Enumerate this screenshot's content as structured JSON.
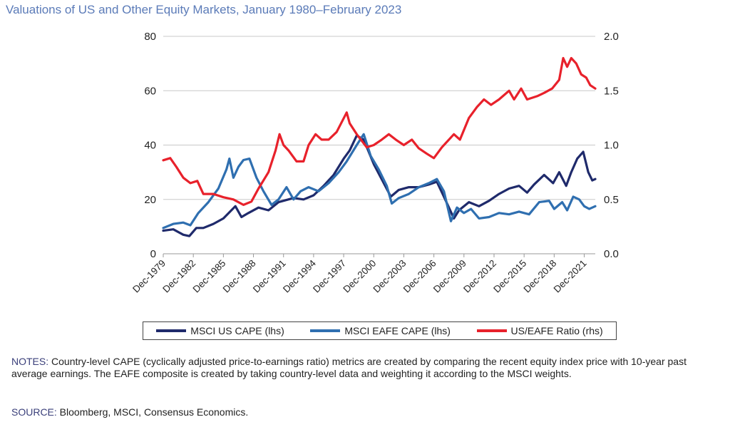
{
  "title": "Valuations of US and Other Equity Markets, January 1980–February 2023",
  "chart_data": {
    "type": "line",
    "title": "Valuations of US and Other Equity Markets, January 1980–February 2023",
    "xlabel": "",
    "ylabel_left": "",
    "ylabel_right": "",
    "x_range": [
      1980.0,
      2023.1
    ],
    "ylim_left": [
      0,
      80
    ],
    "ylim_right": [
      0.0,
      2.0
    ],
    "y_ticks_left": [
      "80",
      "60",
      "40",
      "20",
      "0"
    ],
    "y_ticks_right": [
      "2.0",
      "1.5",
      "1.0",
      "0.5",
      "0.0"
    ],
    "x_ticks": [
      {
        "label": "Dec-1979",
        "x": 1980.0
      },
      {
        "label": "Dec-1982",
        "x": 1983.0
      },
      {
        "label": "Dec-1985",
        "x": 1986.0
      },
      {
        "label": "Dec-1988",
        "x": 1989.0
      },
      {
        "label": "Dec-1991",
        "x": 1992.0
      },
      {
        "label": "Dec-1994",
        "x": 1995.0
      },
      {
        "label": "Dec-1997",
        "x": 1998.0
      },
      {
        "label": "Dec-2000",
        "x": 2001.0
      },
      {
        "label": "Dec-2003",
        "x": 2004.0
      },
      {
        "label": "Dec-2006",
        "x": 2007.0
      },
      {
        "label": "Dec-2009",
        "x": 2010.0
      },
      {
        "label": "Dec-2012",
        "x": 2013.0
      },
      {
        "label": "Dec-2015",
        "x": 2016.0
      },
      {
        "label": "Dec-2018",
        "x": 2019.0
      },
      {
        "label": "Dec-2021",
        "x": 2022.0
      }
    ],
    "grid": true,
    "series": [
      {
        "name": "MSCI US CAPE (lhs)",
        "axis": "left",
        "color": "#1f2a6b",
        "points": [
          [
            1980.0,
            8.5
          ],
          [
            1981.0,
            9.0
          ],
          [
            1982.0,
            7.0
          ],
          [
            1982.6,
            6.5
          ],
          [
            1983.3,
            9.5
          ],
          [
            1984.0,
            9.5
          ],
          [
            1985.0,
            11.0
          ],
          [
            1986.0,
            13.0
          ],
          [
            1987.2,
            17.5
          ],
          [
            1987.8,
            13.5
          ],
          [
            1988.5,
            15.0
          ],
          [
            1989.5,
            17.0
          ],
          [
            1990.5,
            16.0
          ],
          [
            1991.5,
            19.0
          ],
          [
            1993.0,
            20.5
          ],
          [
            1994.0,
            20.0
          ],
          [
            1995.0,
            21.5
          ],
          [
            1996.0,
            25.0
          ],
          [
            1997.0,
            29.0
          ],
          [
            1998.0,
            35.0
          ],
          [
            1998.6,
            38.0
          ],
          [
            1999.3,
            43.5
          ],
          [
            2000.0,
            42.0
          ],
          [
            2001.0,
            33.0
          ],
          [
            2002.0,
            26.0
          ],
          [
            2002.7,
            21.0
          ],
          [
            2003.5,
            23.5
          ],
          [
            2004.5,
            24.5
          ],
          [
            2005.5,
            24.5
          ],
          [
            2006.5,
            25.5
          ],
          [
            2007.3,
            26.5
          ],
          [
            2008.0,
            21.0
          ],
          [
            2009.0,
            13.0
          ],
          [
            2009.5,
            16.0
          ],
          [
            2010.5,
            19.0
          ],
          [
            2011.5,
            17.5
          ],
          [
            2012.5,
            19.5
          ],
          [
            2013.5,
            22.0
          ],
          [
            2014.5,
            24.0
          ],
          [
            2015.5,
            25.0
          ],
          [
            2016.3,
            22.5
          ],
          [
            2017.0,
            25.5
          ],
          [
            2018.0,
            29.0
          ],
          [
            2018.9,
            26.0
          ],
          [
            2019.5,
            30.0
          ],
          [
            2020.2,
            25.0
          ],
          [
            2020.7,
            30.0
          ],
          [
            2021.3,
            35.0
          ],
          [
            2021.9,
            37.5
          ],
          [
            2022.4,
            30.0
          ],
          [
            2022.8,
            27.0
          ],
          [
            2023.1,
            27.5
          ]
        ]
      },
      {
        "name": "MSCI EAFE CAPE (lhs)",
        "axis": "left",
        "color": "#2f6fb0",
        "points": [
          [
            1980.0,
            9.5
          ],
          [
            1981.0,
            11.0
          ],
          [
            1982.0,
            11.5
          ],
          [
            1982.7,
            10.5
          ],
          [
            1983.5,
            15.0
          ],
          [
            1984.5,
            19.0
          ],
          [
            1985.5,
            24.0
          ],
          [
            1986.3,
            31.0
          ],
          [
            1986.6,
            35.0
          ],
          [
            1987.0,
            28.0
          ],
          [
            1987.5,
            32.0
          ],
          [
            1988.0,
            34.5
          ],
          [
            1988.6,
            35.0
          ],
          [
            1989.3,
            28.0
          ],
          [
            1990.0,
            23.0
          ],
          [
            1990.8,
            18.0
          ],
          [
            1991.5,
            20.0
          ],
          [
            1992.3,
            24.5
          ],
          [
            1993.0,
            20.0
          ],
          [
            1993.7,
            23.0
          ],
          [
            1994.5,
            24.5
          ],
          [
            1995.5,
            23.0
          ],
          [
            1996.5,
            26.0
          ],
          [
            1997.5,
            30.0
          ],
          [
            1998.3,
            34.0
          ],
          [
            1999.3,
            40.0
          ],
          [
            2000.0,
            44.0
          ],
          [
            2000.7,
            36.0
          ],
          [
            2001.5,
            31.0
          ],
          [
            2002.3,
            25.0
          ],
          [
            2002.8,
            18.5
          ],
          [
            2003.5,
            20.5
          ],
          [
            2004.5,
            22.0
          ],
          [
            2005.5,
            24.5
          ],
          [
            2006.5,
            26.0
          ],
          [
            2007.3,
            27.5
          ],
          [
            2008.0,
            23.0
          ],
          [
            2008.7,
            12.0
          ],
          [
            2009.3,
            17.0
          ],
          [
            2010.0,
            15.0
          ],
          [
            2010.7,
            16.5
          ],
          [
            2011.5,
            13.0
          ],
          [
            2012.5,
            13.5
          ],
          [
            2013.5,
            15.0
          ],
          [
            2014.5,
            14.5
          ],
          [
            2015.5,
            15.5
          ],
          [
            2016.5,
            14.5
          ],
          [
            2017.5,
            19.0
          ],
          [
            2018.5,
            19.5
          ],
          [
            2019.0,
            16.5
          ],
          [
            2019.8,
            19.0
          ],
          [
            2020.3,
            16.0
          ],
          [
            2020.9,
            21.0
          ],
          [
            2021.5,
            20.0
          ],
          [
            2022.0,
            17.5
          ],
          [
            2022.5,
            16.5
          ],
          [
            2023.1,
            17.5
          ]
        ]
      },
      {
        "name": "US/EAFE Ratio (rhs)",
        "axis": "right",
        "color": "#e8212b",
        "points": [
          [
            1980.0,
            0.86
          ],
          [
            1980.7,
            0.88
          ],
          [
            1981.3,
            0.8
          ],
          [
            1982.0,
            0.7
          ],
          [
            1982.7,
            0.65
          ],
          [
            1983.4,
            0.67
          ],
          [
            1984.0,
            0.55
          ],
          [
            1985.0,
            0.55
          ],
          [
            1986.0,
            0.52
          ],
          [
            1987.0,
            0.5
          ],
          [
            1988.0,
            0.45
          ],
          [
            1988.8,
            0.48
          ],
          [
            1989.5,
            0.6
          ],
          [
            1990.5,
            0.75
          ],
          [
            1991.2,
            0.95
          ],
          [
            1991.6,
            1.1
          ],
          [
            1992.0,
            1.0
          ],
          [
            1992.5,
            0.95
          ],
          [
            1993.3,
            0.85
          ],
          [
            1994.0,
            0.85
          ],
          [
            1994.5,
            1.0
          ],
          [
            1995.2,
            1.1
          ],
          [
            1995.8,
            1.05
          ],
          [
            1996.5,
            1.05
          ],
          [
            1997.3,
            1.12
          ],
          [
            1998.3,
            1.3
          ],
          [
            1998.6,
            1.2
          ],
          [
            1999.3,
            1.1
          ],
          [
            2000.3,
            0.98
          ],
          [
            2001.0,
            1.0
          ],
          [
            2001.8,
            1.05
          ],
          [
            2002.5,
            1.1
          ],
          [
            2003.2,
            1.05
          ],
          [
            2004.0,
            1.0
          ],
          [
            2004.8,
            1.05
          ],
          [
            2005.5,
            0.97
          ],
          [
            2006.3,
            0.92
          ],
          [
            2007.0,
            0.88
          ],
          [
            2007.8,
            0.98
          ],
          [
            2008.5,
            1.05
          ],
          [
            2009.0,
            1.1
          ],
          [
            2009.6,
            1.05
          ],
          [
            2010.5,
            1.25
          ],
          [
            2011.3,
            1.35
          ],
          [
            2012.0,
            1.42
          ],
          [
            2012.7,
            1.37
          ],
          [
            2013.5,
            1.42
          ],
          [
            2014.5,
            1.5
          ],
          [
            2015.0,
            1.42
          ],
          [
            2015.7,
            1.52
          ],
          [
            2016.3,
            1.42
          ],
          [
            2017.3,
            1.45
          ],
          [
            2018.0,
            1.48
          ],
          [
            2018.8,
            1.52
          ],
          [
            2019.5,
            1.6
          ],
          [
            2019.9,
            1.8
          ],
          [
            2020.3,
            1.72
          ],
          [
            2020.7,
            1.8
          ],
          [
            2021.2,
            1.75
          ],
          [
            2021.7,
            1.65
          ],
          [
            2022.2,
            1.62
          ],
          [
            2022.6,
            1.55
          ],
          [
            2023.1,
            1.52
          ]
        ]
      }
    ]
  },
  "legend": {
    "items": [
      {
        "label": "MSCI US CAPE (lhs)",
        "color": "#1f2a6b"
      },
      {
        "label": "MSCI EAFE CAPE (lhs)",
        "color": "#2f6fb0"
      },
      {
        "label": "US/EAFE Ratio (rhs)",
        "color": "#e8212b"
      }
    ]
  },
  "notes": {
    "label": "NOTES:",
    "text": " Country-level CAPE (cyclically adjusted price-to-earnings ratio) metrics are created by comparing the recent equity index price with 10-year past average earnings. The EAFE composite is created by taking country-level data and weighting it according to the MSCI weights."
  },
  "source": {
    "label": "SOURCE:",
    "text": " Bloomberg, MSCI, Consensus Economics."
  }
}
